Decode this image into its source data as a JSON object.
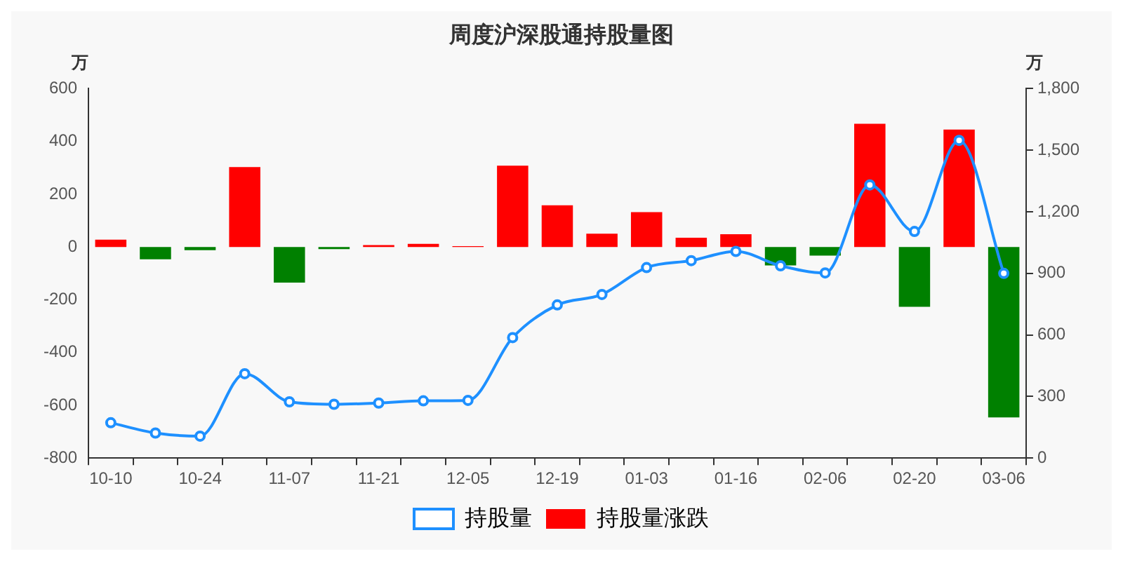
{
  "chart_data": {
    "type": "bar",
    "title": "周度沪深股通持股量图",
    "ylabel": "万",
    "y2label": "万",
    "categories": [
      "10-10",
      null,
      "10-24",
      null,
      "11-07",
      null,
      "11-21",
      null,
      "12-05",
      null,
      "12-19",
      null,
      "01-03",
      null,
      "01-16",
      null,
      "02-06",
      null,
      "02-20",
      null,
      "03-06"
    ],
    "series": [
      {
        "name": "持股量",
        "type": "line",
        "axis": "y2",
        "color": "#1e90ff",
        "values": [
          172,
          122,
          107,
          411,
          274,
          262,
          268,
          279,
          281,
          587,
          746,
          797,
          928,
          962,
          1007,
          937,
          902,
          1331,
          1104,
          1548,
          900
        ]
      },
      {
        "name": "持股量涨跌",
        "color": "#ff0000",
        "colors": [
          "#ff0000",
          "#008000",
          "#008000",
          "#ff0000",
          "#008000",
          "#008000",
          "#ff0000",
          "#ff0000",
          "#ff0000",
          "#ff0000",
          "#ff0000",
          "#ff0000",
          "#ff0000",
          "#ff0000",
          "#ff0000",
          "#008000",
          "#008000",
          "#ff0000",
          "#008000",
          "#ff0000",
          "#008000"
        ],
        "values": [
          28,
          -47,
          -12,
          303,
          -135,
          -8,
          7,
          12,
          3,
          308,
          158,
          50,
          132,
          35,
          48,
          -70,
          -33,
          467,
          -227,
          445,
          -646
        ]
      }
    ],
    "ylim": [
      -800,
      600
    ],
    "yticks": [
      -800,
      -600,
      -400,
      -200,
      0,
      200,
      400,
      600
    ],
    "y2lim": [
      0,
      1800
    ],
    "y2ticks": [
      {
        "value": 0,
        "label": "0"
      },
      {
        "value": 300,
        "label": "300"
      },
      {
        "value": 600,
        "label": "600"
      },
      {
        "value": 900,
        "label": "900"
      },
      {
        "value": 1200,
        "label": "1,200"
      },
      {
        "value": 1500,
        "label": "1,500"
      },
      {
        "value": 1800,
        "label": "1,800"
      }
    ],
    "grid": false,
    "legend": "bottom",
    "marker": "circle"
  }
}
